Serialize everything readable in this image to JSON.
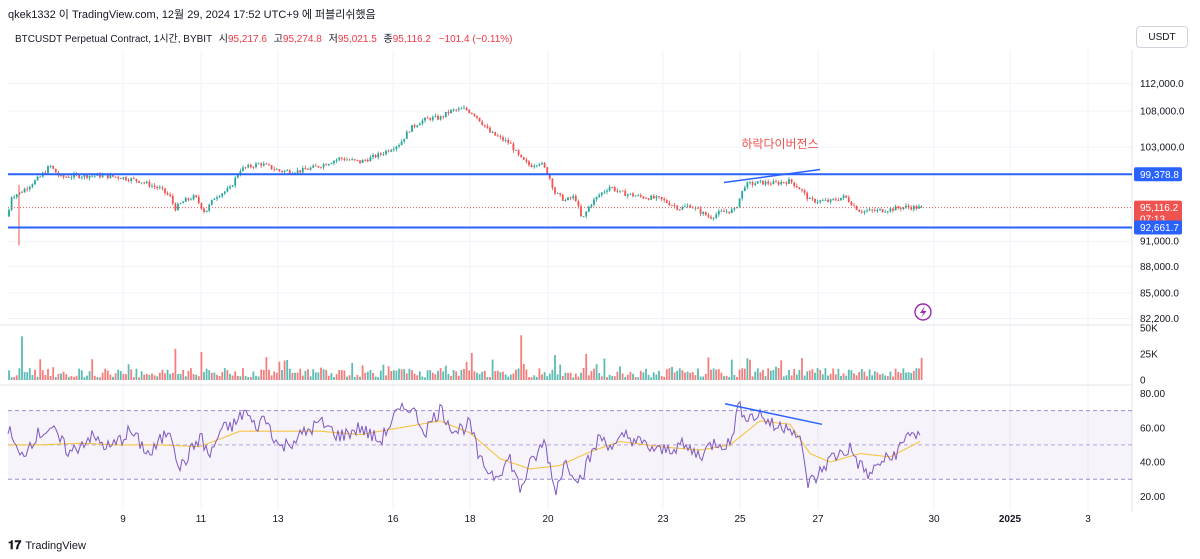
{
  "header": {
    "attribution": "qkek1332 이 TradingView.com, 12월 29, 2024 17:52 UTC+9 에 퍼블리쉬했음"
  },
  "legend": {
    "symbol": "BTCUSDT Perpetual Contract, 1시간, BYBIT",
    "open_label": "시",
    "open": "95,217.6",
    "high_label": "고",
    "high": "95,274.8",
    "low_label": "저",
    "low": "95,021.5",
    "close_label": "종",
    "close": "95,116.2",
    "change": "−101.4 (−0.11%)"
  },
  "currency_button": "USDT",
  "annotation_text": "하락다이버전스",
  "price_badges": {
    "upper_line": "99,378.8",
    "last_price": "95,116.2",
    "countdown": "07:13",
    "lower_line": "92,661.7"
  },
  "footer": {
    "brand": "TradingView"
  },
  "colors": {
    "up": "#26a69a",
    "down": "#ef5350",
    "line": "#2962ff",
    "rsi": "#7e57c2",
    "rsi_ma": "#f5c542",
    "accent_purple": "#9c27b0"
  },
  "chart_data": [
    {
      "type": "candlestick",
      "title": "BTCUSDT Perpetual Contract, 1시간, BYBIT",
      "x_ticks": [
        "9",
        "11",
        "13",
        "16",
        "18",
        "20",
        "23",
        "25",
        "27",
        "30",
        "2025",
        "3"
      ],
      "y_ticks": [
        "112,000.0",
        "108,000.0",
        "103,000.0",
        "91,000.0",
        "88,000.0",
        "85,000.0",
        "82,200.0"
      ],
      "ylim": [
        81500,
        115500
      ],
      "scale": "log",
      "horizontal_lines": [
        99378.8,
        92661.7
      ],
      "last_price": 95116.2,
      "path": [
        [
          0,
          98000
        ],
        [
          4,
          99500
        ],
        [
          7,
          96000
        ],
        [
          8,
          94000
        ],
        [
          11,
          96500
        ],
        [
          20,
          97000
        ],
        [
          40,
          99000
        ],
        [
          50,
          100500
        ],
        [
          60,
          99000
        ],
        [
          80,
          99200
        ],
        [
          100,
          99200
        ],
        [
          120,
          99000
        ],
        [
          140,
          98500
        ],
        [
          160,
          97500
        ],
        [
          170,
          96500
        ],
        [
          175,
          95000
        ],
        [
          185,
          96000
        ],
        [
          195,
          96500
        ],
        [
          205,
          94500
        ],
        [
          215,
          96500
        ],
        [
          230,
          97500
        ],
        [
          240,
          100000
        ],
        [
          260,
          100800
        ],
        [
          280,
          99800
        ],
        [
          300,
          99800
        ],
        [
          320,
          100500
        ],
        [
          340,
          101500
        ],
        [
          360,
          101000
        ],
        [
          380,
          102000
        ],
        [
          400,
          103500
        ],
        [
          410,
          105500
        ],
        [
          420,
          106500
        ],
        [
          430,
          107000
        ],
        [
          440,
          107000
        ],
        [
          450,
          108000
        ],
        [
          465,
          108300
        ],
        [
          475,
          107500
        ],
        [
          490,
          105000
        ],
        [
          500,
          104200
        ],
        [
          510,
          103500
        ],
        [
          520,
          101500
        ],
        [
          530,
          100500
        ],
        [
          540,
          101000
        ],
        [
          548,
          99500
        ],
        [
          555,
          97000
        ],
        [
          565,
          96000
        ],
        [
          575,
          96500
        ],
        [
          582,
          93500
        ],
        [
          590,
          95500
        ],
        [
          600,
          96800
        ],
        [
          610,
          97800
        ],
        [
          620,
          97000
        ],
        [
          640,
          96500
        ],
        [
          660,
          96200
        ],
        [
          680,
          95000
        ],
        [
          690,
          95400
        ],
        [
          700,
          94600
        ],
        [
          710,
          93900
        ],
        [
          720,
          94500
        ],
        [
          735,
          94800
        ],
        [
          745,
          98000
        ],
        [
          760,
          98300
        ],
        [
          775,
          98200
        ],
        [
          790,
          98500
        ],
        [
          800,
          97500
        ],
        [
          810,
          96000
        ],
        [
          830,
          95900
        ],
        [
          845,
          96500
        ],
        [
          855,
          95200
        ],
        [
          860,
          94700
        ],
        [
          875,
          94700
        ],
        [
          890,
          94900
        ],
        [
          905,
          95200
        ],
        [
          920,
          95100
        ]
      ]
    },
    {
      "type": "bar",
      "title": "Volume",
      "y_ticks": [
        "50K",
        "25K",
        "0"
      ],
      "ylim": [
        0,
        50000
      ],
      "spikes": [
        [
          20,
          42000
        ],
        [
          175,
          30000
        ],
        [
          200,
          27000
        ],
        [
          470,
          26000
        ],
        [
          520,
          43000
        ],
        [
          555,
          24000
        ],
        [
          585,
          25000
        ],
        [
          800,
          21000
        ]
      ]
    },
    {
      "type": "line",
      "title": "RSI",
      "y_ticks": [
        "80.00",
        "60.00",
        "40.00",
        "20.00"
      ],
      "ylim": [
        15,
        82
      ],
      "bands": [
        70,
        50,
        30
      ],
      "path": [
        [
          8,
          60
        ],
        [
          20,
          42
        ],
        [
          35,
          55
        ],
        [
          50,
          60
        ],
        [
          70,
          45
        ],
        [
          90,
          55
        ],
        [
          110,
          48
        ],
        [
          130,
          58
        ],
        [
          150,
          44
        ],
        [
          170,
          60
        ],
        [
          180,
          36
        ],
        [
          200,
          55
        ],
        [
          210,
          43
        ],
        [
          220,
          58
        ],
        [
          235,
          62
        ],
        [
          245,
          70
        ],
        [
          255,
          60
        ],
        [
          265,
          66
        ],
        [
          280,
          48
        ],
        [
          300,
          55
        ],
        [
          320,
          63
        ],
        [
          340,
          55
        ],
        [
          360,
          60
        ],
        [
          380,
          52
        ],
        [
          395,
          67
        ],
        [
          410,
          73
        ],
        [
          425,
          58
        ],
        [
          440,
          71
        ],
        [
          455,
          58
        ],
        [
          470,
          62
        ],
        [
          480,
          40
        ],
        [
          495,
          32
        ],
        [
          510,
          42
        ],
        [
          520,
          24
        ],
        [
          530,
          38
        ],
        [
          545,
          52
        ],
        [
          555,
          23
        ],
        [
          565,
          40
        ],
        [
          580,
          30
        ],
        [
          600,
          55
        ],
        [
          615,
          48
        ],
        [
          625,
          56
        ],
        [
          640,
          51
        ],
        [
          660,
          46
        ],
        [
          680,
          50
        ],
        [
          700,
          44
        ],
        [
          715,
          52
        ],
        [
          730,
          50
        ],
        [
          738,
          72
        ],
        [
          750,
          66
        ],
        [
          760,
          68
        ],
        [
          775,
          60
        ],
        [
          790,
          62
        ],
        [
          800,
          52
        ],
        [
          808,
          28
        ],
        [
          815,
          30
        ],
        [
          830,
          42
        ],
        [
          850,
          48
        ],
        [
          860,
          38
        ],
        [
          870,
          32
        ],
        [
          880,
          40
        ],
        [
          890,
          42
        ],
        [
          900,
          48
        ],
        [
          910,
          58
        ],
        [
          920,
          55
        ]
      ],
      "ma_path": [
        [
          8,
          50
        ],
        [
          40,
          50
        ],
        [
          80,
          51
        ],
        [
          120,
          50
        ],
        [
          160,
          50
        ],
        [
          200,
          49
        ],
        [
          240,
          58
        ],
        [
          280,
          58
        ],
        [
          320,
          58
        ],
        [
          360,
          56
        ],
        [
          400,
          60
        ],
        [
          440,
          64
        ],
        [
          470,
          57
        ],
        [
          500,
          42
        ],
        [
          530,
          36
        ],
        [
          560,
          38
        ],
        [
          590,
          46
        ],
        [
          620,
          52
        ],
        [
          660,
          49
        ],
        [
          700,
          47
        ],
        [
          730,
          50
        ],
        [
          760,
          64
        ],
        [
          790,
          62
        ],
        [
          810,
          45
        ],
        [
          830,
          40
        ],
        [
          860,
          45
        ],
        [
          890,
          43
        ],
        [
          920,
          52
        ]
      ]
    }
  ]
}
